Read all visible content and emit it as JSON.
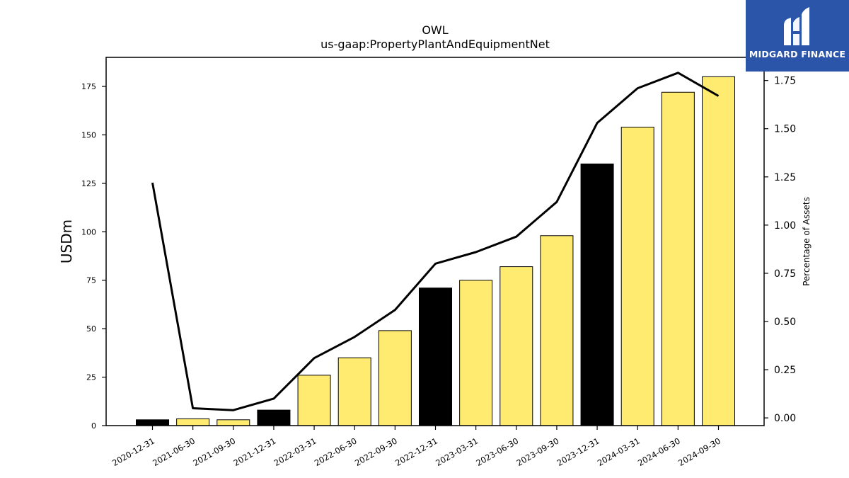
{
  "chart_data": {
    "type": "bar",
    "title": "OWL",
    "subtitle": "us-gaap:PropertyPlantAndEquipmentNet",
    "ylabel": "USDm",
    "y2label": "Percentage of Assets",
    "ylim": [
      0,
      190
    ],
    "y2lim": [
      -0.04,
      1.87
    ],
    "yticks": [
      0,
      25,
      50,
      75,
      100,
      125,
      150,
      175
    ],
    "y2ticks": [
      "0.00",
      "0.25",
      "0.50",
      "0.75",
      "1.00",
      "1.25",
      "1.50",
      "1.75"
    ],
    "categories": [
      "2020-12-31",
      "2021-06-30",
      "2021-09-30",
      "2021-12-31",
      "2022-03-31",
      "2022-06-30",
      "2022-09-30",
      "2022-12-31",
      "2023-03-31",
      "2023-06-30",
      "2023-09-30",
      "2023-12-31",
      "2024-03-31",
      "2024-06-30",
      "2024-09-30"
    ],
    "series": [
      {
        "type": "bar",
        "values": [
          3,
          3.5,
          3,
          8,
          26,
          35,
          49,
          71,
          75,
          82,
          98,
          135,
          154,
          172,
          180
        ],
        "colors": [
          "#000000",
          "#ffeb70",
          "#ffeb70",
          "#000000",
          "#ffeb70",
          "#ffeb70",
          "#ffeb70",
          "#000000",
          "#ffeb70",
          "#ffeb70",
          "#ffeb70",
          "#000000",
          "#ffeb70",
          "#ffeb70",
          "#ffeb70"
        ]
      },
      {
        "type": "line",
        "axis": "right",
        "color": "#000000",
        "values": [
          1.22,
          0.05,
          0.04,
          0.1,
          0.31,
          0.42,
          0.56,
          0.8,
          0.86,
          0.94,
          1.12,
          1.53,
          1.71,
          1.79,
          1.67
        ]
      }
    ],
    "grid": false,
    "legend": "none"
  },
  "logo": {
    "text": "MIDGARD FINANCE",
    "color": "#2b55a8"
  }
}
